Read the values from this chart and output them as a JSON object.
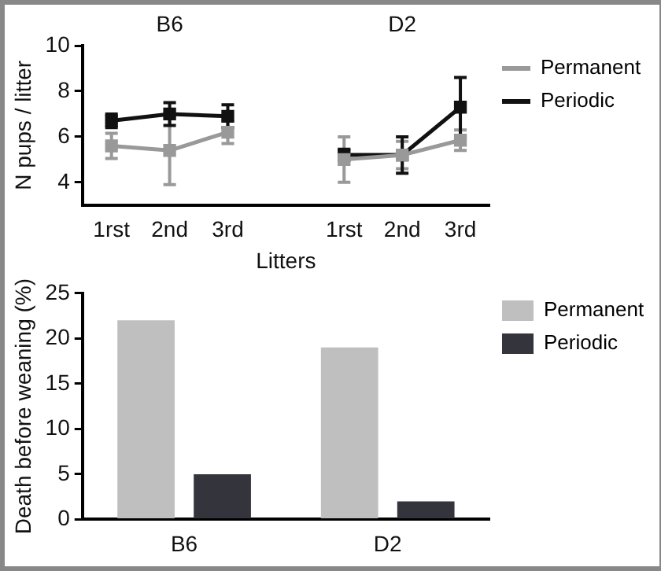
{
  "chart_data": [
    {
      "type": "line",
      "ylabel": "N pups / litter",
      "xlabel": "Litters",
      "categories": [
        "1rst",
        "2nd",
        "3rd",
        null,
        "1rst",
        "2nd",
        "3rd"
      ],
      "marker": "square",
      "annotations": [
        "B6",
        "D2"
      ],
      "series": [
        {
          "name": "Permanent",
          "color": "#999999",
          "values": [
            5.6,
            5.4,
            6.2,
            null,
            5.0,
            5.2,
            5.85
          ],
          "errors": [
            0.55,
            1.5,
            0.5,
            null,
            1.0,
            0.6,
            0.45
          ]
        },
        {
          "name": "Periodic",
          "color": "#111111",
          "values": [
            6.7,
            7.0,
            6.9,
            null,
            5.2,
            5.2,
            7.3
          ],
          "errors": [
            0.3,
            0.5,
            0.5,
            null,
            0.25,
            0.8,
            1.3
          ]
        }
      ],
      "ylim": [
        3,
        10
      ],
      "yticks": [
        4,
        6,
        8,
        10
      ],
      "grid": false,
      "legend": "top right"
    },
    {
      "type": "bar",
      "ylabel": "Death before weaning (%)",
      "categories": [
        "B6",
        "D2"
      ],
      "series": [
        {
          "name": "Permanent",
          "color": "#bfbfbf",
          "values": [
            22,
            19
          ]
        },
        {
          "name": "Periodic",
          "color": "#33343c",
          "values": [
            5,
            2
          ]
        }
      ],
      "ylim": [
        0,
        25
      ],
      "yticks": [
        0,
        5,
        10,
        15,
        20,
        25
      ],
      "grid": false,
      "legend": "top right"
    }
  ]
}
